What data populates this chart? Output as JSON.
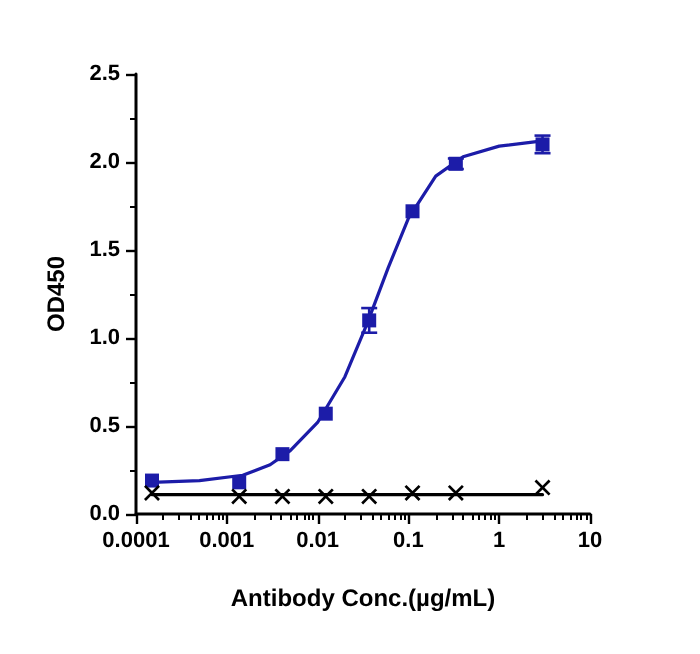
{
  "chart_data": {
    "type": "scatter",
    "xlabel": "Antibody Conc.(µg/mL)",
    "ylabel": "OD450",
    "log": "x",
    "grid": false,
    "xlim": [
      0.0001,
      10
    ],
    "xticks": [
      {
        "value": 0.0001,
        "label": "0.0001"
      },
      {
        "value": 0.001,
        "label": "0.001"
      },
      {
        "value": 0.01,
        "label": "0.01"
      },
      {
        "value": 0.1,
        "label": "0.1"
      },
      {
        "value": 1,
        "label": "1"
      },
      {
        "value": 10,
        "label": "10"
      }
    ],
    "ylim": [
      0,
      2.5
    ],
    "yticks": [
      {
        "value": 0,
        "label": "0.0"
      },
      {
        "value": 0.5,
        "label": "0.5"
      },
      {
        "value": 1,
        "label": "1.0"
      },
      {
        "value": 1.5,
        "label": "1.5"
      },
      {
        "value": 2,
        "label": "2.0"
      },
      {
        "value": 2.5,
        "label": "2.5"
      }
    ],
    "series": [
      {
        "marker": "square",
        "color": "#1c1ca8",
        "x": [
          0.00015,
          0.00137,
          0.0041,
          0.0123,
          0.037,
          0.111,
          0.333,
          3
        ],
        "values": [
          0.19,
          0.18,
          0.34,
          0.57,
          1.1,
          1.72,
          1.99,
          2.1
        ],
        "errors": [
          null,
          null,
          null,
          null,
          0.07,
          null,
          0.03,
          0.05
        ]
      },
      {
        "type": "line",
        "marker": "none",
        "color": "#1c1ca8",
        "x": [
          0.00015,
          0.0005,
          0.0015,
          0.003,
          0.005,
          0.01,
          0.02,
          0.035,
          0.06,
          0.1,
          0.2,
          0.4,
          1,
          3
        ],
        "values": [
          0.18,
          0.19,
          0.22,
          0.28,
          0.36,
          0.52,
          0.78,
          1.08,
          1.4,
          1.68,
          1.92,
          2.03,
          2.09,
          2.12
        ]
      },
      {
        "marker": "cross",
        "color": "#000000",
        "x": [
          0.00015,
          0.00137,
          0.0041,
          0.0123,
          0.037,
          0.111,
          0.333,
          3
        ],
        "values": [
          0.12,
          0.1,
          0.1,
          0.1,
          0.1,
          0.12,
          0.12,
          0.15
        ]
      },
      {
        "type": "line",
        "marker": "none",
        "color": "#000000",
        "x": [
          0.00015,
          3
        ],
        "values": [
          0.11,
          0.11
        ]
      }
    ]
  }
}
